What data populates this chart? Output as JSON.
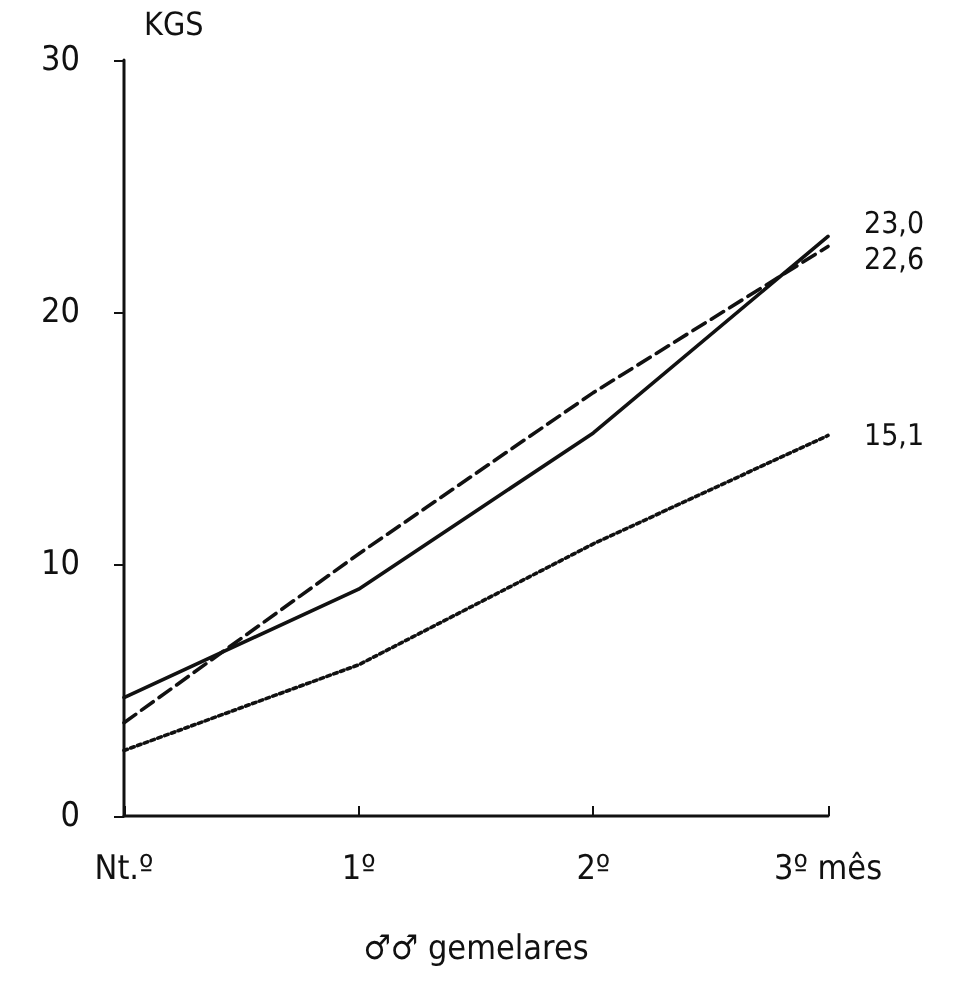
{
  "chart_data": {
    "type": "line",
    "xlabel": "♂♂ gemelares",
    "ylabel": "KGS",
    "categories": [
      "Nt.º",
      "1º",
      "2º",
      "3º mês"
    ],
    "series": [
      {
        "color": "#111111",
        "line_style": "solid",
        "values": [
          4.7,
          9.0,
          15.2,
          23.0
        ],
        "value_labels": [
          null,
          null,
          null,
          "23,0"
        ]
      },
      {
        "color": "#111111",
        "line_style": "dashed",
        "values": [
          3.7,
          10.4,
          16.8,
          22.6
        ],
        "value_labels": [
          null,
          null,
          null,
          "22,6"
        ]
      },
      {
        "color": "#111111",
        "line_style": "dotted",
        "values": [
          2.6,
          6.0,
          10.8,
          15.1
        ],
        "value_labels": [
          null,
          null,
          null,
          "15,1"
        ]
      }
    ],
    "ylim": [
      0,
      30
    ],
    "yticks": [
      0,
      10,
      20,
      30
    ],
    "grid": false,
    "marker": "none"
  }
}
